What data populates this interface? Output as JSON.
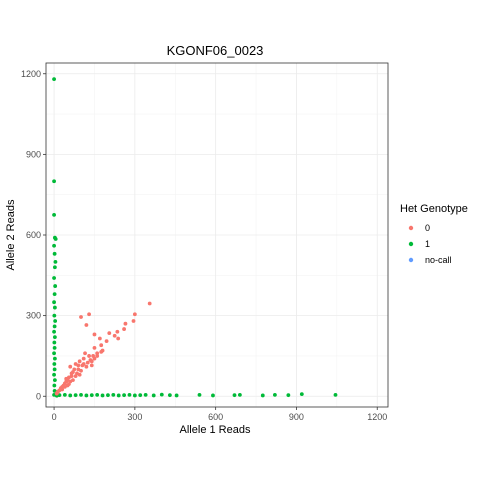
{
  "chart_data": {
    "type": "scatter",
    "title": "KGONF06_0023",
    "xlabel": "Allele 1 Reads",
    "ylabel": "Allele 2 Reads",
    "xlim": [
      -30,
      1240
    ],
    "ylim": [
      -40,
      1240
    ],
    "xticks": [
      0,
      300,
      600,
      900,
      1200
    ],
    "yticks": [
      0,
      300,
      600,
      900,
      1200
    ],
    "grid": true,
    "legend": {
      "title": "Het Genotype",
      "placement": "right",
      "entries": [
        "0",
        "1",
        "no-call"
      ]
    },
    "colors": {
      "0": "#F8766D",
      "1": "#00BA38",
      "no-call": "#619CFF"
    },
    "series": [
      {
        "name": "0",
        "points": [
          [
            355,
            345
          ],
          [
            300,
            305
          ],
          [
            295,
            280
          ],
          [
            265,
            270
          ],
          [
            260,
            250
          ],
          [
            235,
            240
          ],
          [
            225,
            225
          ],
          [
            238,
            215
          ],
          [
            205,
            235
          ],
          [
            195,
            205
          ],
          [
            175,
            190
          ],
          [
            180,
            170
          ],
          [
            150,
            180
          ],
          [
            160,
            160
          ],
          [
            145,
            150
          ],
          [
            130,
            150
          ],
          [
            115,
            160
          ],
          [
            110,
            140
          ],
          [
            95,
            130
          ],
          [
            80,
            120
          ],
          [
            60,
            110
          ],
          [
            100,
            295
          ],
          [
            130,
            305
          ],
          [
            120,
            265
          ],
          [
            150,
            230
          ],
          [
            170,
            215
          ],
          [
            140,
            130
          ],
          [
            125,
            125
          ],
          [
            105,
            115
          ],
          [
            90,
            100
          ],
          [
            85,
            85
          ],
          [
            70,
            90
          ],
          [
            65,
            75
          ],
          [
            55,
            70
          ],
          [
            50,
            60
          ],
          [
            45,
            55
          ],
          [
            40,
            48
          ],
          [
            35,
            40
          ],
          [
            30,
            35
          ],
          [
            25,
            30
          ],
          [
            20,
            22
          ],
          [
            15,
            18
          ],
          [
            12,
            14
          ],
          [
            10,
            10
          ],
          [
            150,
            140
          ],
          [
            140,
            115
          ],
          [
            120,
            110
          ],
          [
            100,
            95
          ],
          [
            95,
            80
          ],
          [
            80,
            75
          ],
          [
            70,
            60
          ],
          [
            60,
            55
          ],
          [
            55,
            45
          ],
          [
            40,
            35
          ],
          [
            30,
            25
          ],
          [
            110,
            120
          ],
          [
            135,
            135
          ],
          [
            160,
            150
          ],
          [
            175,
            165
          ],
          [
            50,
            40
          ],
          [
            45,
            65
          ],
          [
            75,
            100
          ],
          [
            65,
            85
          ],
          [
            90,
            115
          ]
        ]
      },
      {
        "name": "1",
        "points": [
          [
            0,
            1180
          ],
          [
            0,
            800
          ],
          [
            0,
            675
          ],
          [
            3,
            590
          ],
          [
            6,
            585
          ],
          [
            0,
            560
          ],
          [
            2,
            530
          ],
          [
            5,
            500
          ],
          [
            3,
            480
          ],
          [
            0,
            440
          ],
          [
            4,
            410
          ],
          [
            2,
            380
          ],
          [
            0,
            350
          ],
          [
            3,
            330
          ],
          [
            1,
            300
          ],
          [
            4,
            280
          ],
          [
            2,
            260
          ],
          [
            0,
            240
          ],
          [
            3,
            220
          ],
          [
            1,
            200
          ],
          [
            2,
            180
          ],
          [
            0,
            160
          ],
          [
            3,
            140
          ],
          [
            1,
            120
          ],
          [
            2,
            100
          ],
          [
            0,
            80
          ],
          [
            3,
            60
          ],
          [
            1,
            40
          ],
          [
            2,
            20
          ],
          [
            0,
            5
          ],
          [
            1045,
            5
          ],
          [
            920,
            8
          ],
          [
            870,
            4
          ],
          [
            820,
            5
          ],
          [
            775,
            3
          ],
          [
            690,
            5
          ],
          [
            670,
            4
          ],
          [
            590,
            3
          ],
          [
            540,
            5
          ],
          [
            455,
            3
          ],
          [
            430,
            4
          ],
          [
            400,
            6
          ],
          [
            370,
            3
          ],
          [
            340,
            5
          ],
          [
            320,
            4
          ],
          [
            300,
            3
          ],
          [
            280,
            5
          ],
          [
            260,
            4
          ],
          [
            240,
            3
          ],
          [
            220,
            5
          ],
          [
            200,
            4
          ],
          [
            180,
            3
          ],
          [
            160,
            5
          ],
          [
            140,
            4
          ],
          [
            120,
            3
          ],
          [
            100,
            5
          ],
          [
            80,
            4
          ],
          [
            60,
            3
          ],
          [
            40,
            5
          ],
          [
            20,
            4
          ],
          [
            10,
            2
          ]
        ]
      },
      {
        "name": "no-call",
        "points": []
      }
    ]
  }
}
